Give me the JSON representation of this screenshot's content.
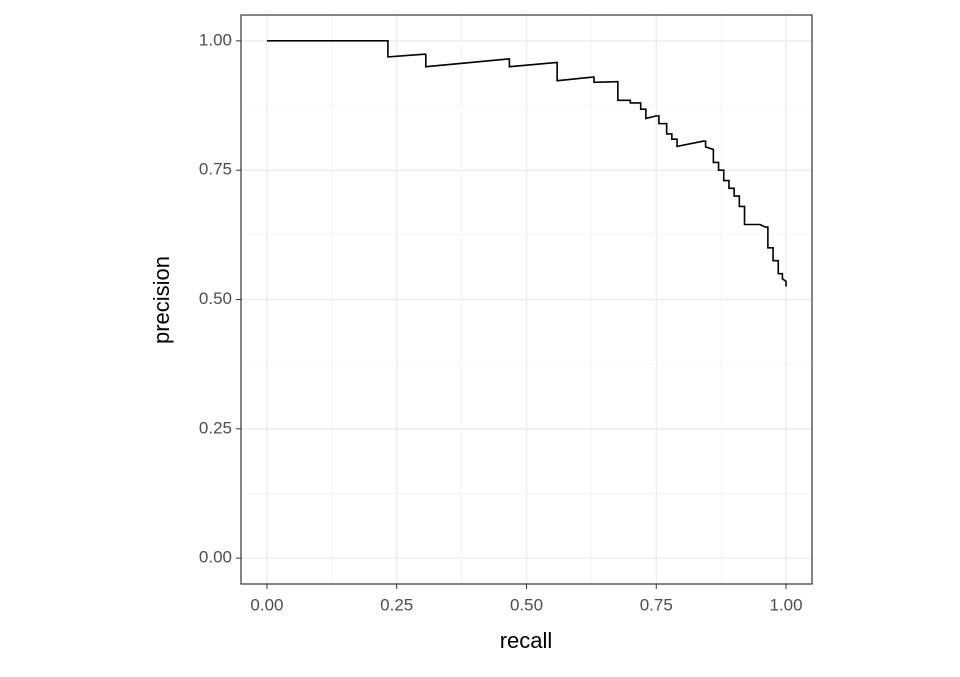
{
  "chart_data": {
    "type": "line",
    "x_label": "recall",
    "y_label": "precision",
    "x": [
      0,
      0.233,
      0.233,
      0.3,
      0.306,
      0.306,
      0.465,
      0.467,
      0.467,
      0.556,
      0.559,
      0.559,
      0.628,
      0.63,
      0.63,
      0.674,
      0.676,
      0.676,
      0.7,
      0.7,
      0.72,
      0.72,
      0.73,
      0.73,
      0.75,
      0.755,
      0.755,
      0.77,
      0.77,
      0.78,
      0.78,
      0.79,
      0.79,
      0.84,
      0.845,
      0.845,
      0.86,
      0.86,
      0.87,
      0.87,
      0.88,
      0.88,
      0.89,
      0.89,
      0.9,
      0.9,
      0.91,
      0.91,
      0.92,
      0.92,
      0.95,
      0.96,
      0.965,
      0.965,
      0.975,
      0.975,
      0.985,
      0.985,
      0.993,
      0.993,
      1,
      1
    ],
    "values": [
      1,
      1,
      0.969,
      0.974,
      0.974,
      0.95,
      0.965,
      0.965,
      0.95,
      0.958,
      0.958,
      0.923,
      0.93,
      0.93,
      0.92,
      0.921,
      0.921,
      0.885,
      0.885,
      0.88,
      0.88,
      0.868,
      0.868,
      0.85,
      0.855,
      0.855,
      0.84,
      0.84,
      0.82,
      0.82,
      0.81,
      0.81,
      0.796,
      0.806,
      0.806,
      0.795,
      0.79,
      0.765,
      0.765,
      0.75,
      0.75,
      0.73,
      0.73,
      0.715,
      0.715,
      0.7,
      0.7,
      0.68,
      0.68,
      0.645,
      0.645,
      0.64,
      0.64,
      0.6,
      0.6,
      0.575,
      0.575,
      0.55,
      0.55,
      0.54,
      0.535,
      0.525
    ],
    "color": "#000000",
    "xlim": [
      -0.05,
      1.05
    ],
    "ylim": [
      -0.05,
      1.05
    ],
    "xticks": [
      {
        "value": 0,
        "label": "0.00"
      },
      {
        "value": 0.25,
        "label": "0.25"
      },
      {
        "value": 0.5,
        "label": "0.50"
      },
      {
        "value": 0.75,
        "label": "0.75"
      },
      {
        "value": 1,
        "label": "1.00"
      }
    ],
    "yticks": [
      {
        "value": 0,
        "label": "0.00"
      },
      {
        "value": 0.25,
        "label": "0.25"
      },
      {
        "value": 0.5,
        "label": "0.50"
      },
      {
        "value": 0.75,
        "label": "0.75"
      },
      {
        "value": 1,
        "label": "1.00"
      }
    ],
    "grid": true,
    "minor_grid": true
  }
}
